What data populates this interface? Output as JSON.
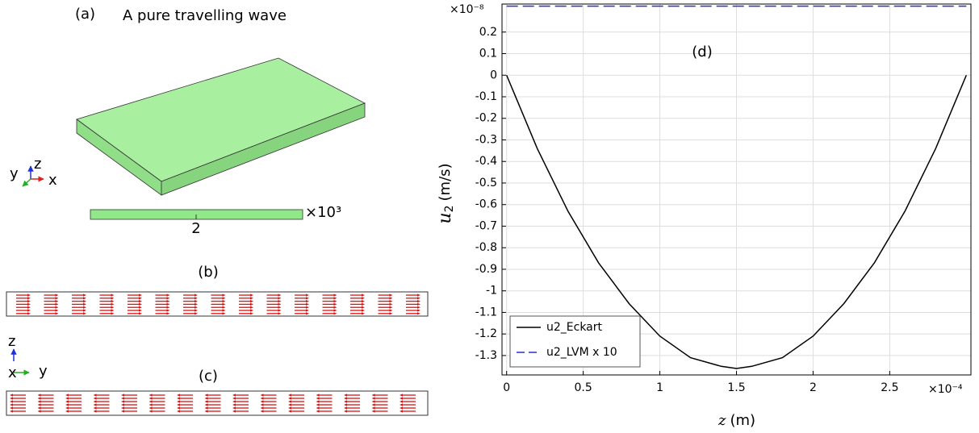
{
  "panel_a": {
    "label": "(a)",
    "title": "A pure travelling wave",
    "scale_tick": "2",
    "scale_factor": "×10³",
    "axes": {
      "x": "x",
      "y": "y",
      "z": "z"
    }
  },
  "panel_b": {
    "label": "(b)"
  },
  "panel_c": {
    "label": "(c)",
    "axes": {
      "x": "x",
      "y": "y",
      "z": "z"
    }
  },
  "chart_data": {
    "type": "line",
    "label": "(d)",
    "x_label": {
      "symbol": "z",
      "unit": "(m)"
    },
    "y_label": {
      "symbol": "u",
      "subscript": "2",
      "unit": "(m/s)"
    },
    "x_multiplier": "×10⁻⁴",
    "y_multiplier": "×10⁻⁸",
    "x": [
      0,
      0.2,
      0.4,
      0.6,
      0.8,
      1.0,
      1.2,
      1.4,
      1.5,
      1.6,
      1.8,
      2.0,
      2.2,
      2.4,
      2.6,
      2.8,
      3.0
    ],
    "series": [
      {
        "name": "u2_Eckart",
        "color": "#000000",
        "dash": false,
        "values": [
          0,
          -0.34,
          -0.63,
          -0.87,
          -1.06,
          -1.21,
          -1.31,
          -1.35,
          -1.36,
          -1.35,
          -1.31,
          -1.21,
          -1.06,
          -0.87,
          -0.63,
          -0.34,
          0
        ]
      },
      {
        "name": "u2_LVM x 10",
        "color": "#2b2bd6",
        "dash": true,
        "values": [
          0.32,
          0.32,
          0.32,
          0.32,
          0.32,
          0.32,
          0.32,
          0.32,
          0.32,
          0.32,
          0.32,
          0.32,
          0.32,
          0.32,
          0.32,
          0.32,
          0.32
        ]
      }
    ],
    "xlim": [
      -0.03,
      3.03
    ],
    "ylim": [
      -1.39,
      0.33
    ],
    "xticks": [
      0,
      0.5,
      1,
      1.5,
      2,
      2.5
    ],
    "yticks": [
      0.2,
      0.1,
      0,
      -0.1,
      -0.2,
      -0.3,
      -0.4,
      -0.5,
      -0.6,
      -0.7,
      -0.8,
      -0.9,
      -1,
      -1.1,
      -1.2,
      -1.3
    ],
    "grid": true,
    "legend": "lower left"
  }
}
